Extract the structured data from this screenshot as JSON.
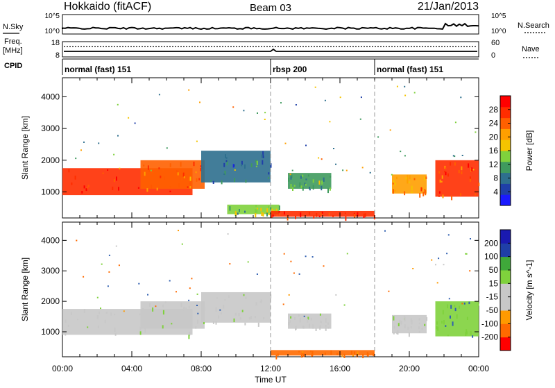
{
  "header": {
    "station": "Hokkaido (fitACF)",
    "beam": "Beam 03",
    "date": "21/Jan/2013"
  },
  "strip": {
    "nsky_label": "N.Sky",
    "nsearch_label": "N.Search",
    "freq_label": "Freq.",
    "freq_unit": "[MHz]",
    "nave_label": "Nave",
    "cpid_label": "CPID",
    "nsky_ticks": [
      "10^5",
      "10^0"
    ],
    "nsearch_ticks": [
      "10^5",
      "10^0"
    ],
    "freq_ticks": [
      "18",
      "8"
    ],
    "nave_ticks": [
      "60",
      "0"
    ]
  },
  "cpid_segments": [
    {
      "label": "normal (fast) 151",
      "start": 0,
      "end": 12
    },
    {
      "label": "rbsp 200",
      "start": 12,
      "end": 18
    },
    {
      "label": "normal (fast) 151",
      "start": 18,
      "end": 24
    }
  ],
  "colors": {
    "power": [
      "#1a1aff",
      "#1f3fa8",
      "#2e6f8e",
      "#3f9a5e",
      "#7fd13c",
      "#f5c400",
      "#ff9f00",
      "#ff6000",
      "#ff2d00",
      "#ff0000"
    ],
    "velocity": [
      "#ff0000",
      "#ff6a00",
      "#ff9a00",
      "#c8c8c8",
      "#c8c8c8",
      "#7fd13c",
      "#3fa83a",
      "#1f3fa8",
      "#1a1ab0"
    ],
    "ground_scatter": "#c8c8c8"
  },
  "chart_data": [
    {
      "type": "heatmap",
      "title": "Power",
      "xlabel": "Time UT",
      "ylabel": "Slant Range [km]",
      "x_ticks": [
        "00:00",
        "04:00",
        "08:00",
        "12:00",
        "16:00",
        "20:00",
        "00:00"
      ],
      "xlim": [
        0,
        24
      ],
      "ylim": [
        180,
        4600
      ],
      "y_ticks": [
        1000,
        2000,
        3000,
        4000
      ],
      "colorbar": {
        "label": "Power [dB]",
        "range": [
          0,
          32
        ],
        "ticks": [
          4,
          8,
          12,
          16,
          20,
          24,
          28
        ]
      },
      "regions": [
        {
          "x": [
            0,
            7.5
          ],
          "y": [
            900,
            1750
          ],
          "value": 28
        },
        {
          "x": [
            4.5,
            8.2
          ],
          "y": [
            1100,
            2000
          ],
          "value": 24
        },
        {
          "x": [
            8,
            12
          ],
          "y": [
            1300,
            2300
          ],
          "value": 8
        },
        {
          "x": [
            9.5,
            12.5
          ],
          "y": [
            300,
            600
          ],
          "value": 14
        },
        {
          "x": [
            12,
            18
          ],
          "y": [
            220,
            400
          ],
          "value": 28
        },
        {
          "x": [
            13,
            15.5
          ],
          "y": [
            1100,
            1600
          ],
          "value": 12
        },
        {
          "x": [
            19,
            21
          ],
          "y": [
            950,
            1550
          ],
          "value": 22
        },
        {
          "x": [
            21.5,
            24
          ],
          "y": [
            850,
            2000
          ],
          "value": 26
        }
      ]
    },
    {
      "type": "heatmap",
      "title": "Velocity",
      "xlabel": "Time UT",
      "ylabel": "Slant Range [km]",
      "x_ticks": [
        "00:00",
        "04:00",
        "08:00",
        "12:00",
        "16:00",
        "20:00",
        "00:00"
      ],
      "xlim": [
        0,
        24
      ],
      "ylim": [
        180,
        4600
      ],
      "y_ticks": [
        1000,
        2000,
        3000,
        4000
      ],
      "colorbar": {
        "label": "Velocity [m s^-1]",
        "ticks": [
          "200",
          "100",
          "50",
          "15",
          "-15",
          "-50",
          "-100",
          "-200"
        ]
      },
      "regions": [
        {
          "x": [
            0,
            7.5
          ],
          "y": [
            900,
            1750
          ],
          "value": 0
        },
        {
          "x": [
            4.5,
            8.2
          ],
          "y": [
            1100,
            2000
          ],
          "value": 0
        },
        {
          "x": [
            8,
            12
          ],
          "y": [
            1300,
            2300
          ],
          "value": 0
        },
        {
          "x": [
            12,
            18
          ],
          "y": [
            220,
            400
          ],
          "value": -80
        },
        {
          "x": [
            13,
            15.5
          ],
          "y": [
            1100,
            1600
          ],
          "value": 0
        },
        {
          "x": [
            19,
            21
          ],
          "y": [
            950,
            1550
          ],
          "value": 0
        },
        {
          "x": [
            21.5,
            24
          ],
          "y": [
            850,
            2000
          ],
          "value": 60
        }
      ]
    }
  ]
}
